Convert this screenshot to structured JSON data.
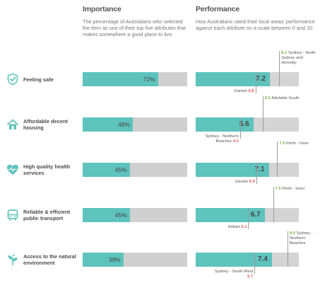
{
  "importance": {
    "title": "Importance",
    "description": "The percentage of Australians who selected the item as one of their top five attributes that makes somewhere a good place to live."
  },
  "performance": {
    "title": "Performance",
    "description": "How Australians rated their local areas' performance against each attribute on a scale between 0 and 10."
  },
  "colors": {
    "fill": "#5ec3bc",
    "track": "#cfcfcf",
    "high": "#7cb342",
    "low": "#e05a5a"
  },
  "chart_data": [
    {
      "type": "bar",
      "title": "Importance",
      "categories": [
        "Feeling safe",
        "Affordable decent housing",
        "High quality health services",
        "Reliable & efficient public transport",
        "Access to the natural environment"
      ],
      "values": [
        72,
        48,
        45,
        45,
        39
      ],
      "labels": [
        "72%",
        "48%",
        "45%",
        "45%",
        "39%"
      ],
      "ylim": [
        0,
        100
      ]
    },
    {
      "type": "bar",
      "title": "Performance",
      "categories": [
        "Feeling safe",
        "Affordable decent housing",
        "High quality health services",
        "Reliable & efficient public transport",
        "Access to the natural environment"
      ],
      "values": [
        7.2,
        5.6,
        7.1,
        6.7,
        7.4
      ],
      "labels": [
        "7.2",
        "5.6",
        "7.1",
        "6.7",
        "7.4"
      ],
      "ylim": [
        0,
        10
      ],
      "high": [
        {
          "value": 8.1,
          "label": "8.1",
          "place": "Sydney - North Sydney and Hornsby"
        },
        {
          "value": 6.5,
          "label": "6.5",
          "place": "Adelaide South"
        },
        {
          "value": 7.9,
          "label": "7.9",
          "place": "Perth - Inner"
        },
        {
          "value": 7.5,
          "label": "7.5",
          "place": "Perth - Inner"
        },
        {
          "value": 8.9,
          "label": "8.9",
          "place": "Sydney - Northern Beaches"
        }
      ],
      "low": [
        {
          "value": 5.8,
          "label": "5.8",
          "place": "Darwin"
        },
        {
          "value": 4.3,
          "label": "4.3",
          "place": "Sydney - Northern Beaches"
        },
        {
          "value": 5.9,
          "label": "5.9",
          "place": "Darwin"
        },
        {
          "value": 5.1,
          "label": "5.1",
          "place": "Hobart"
        },
        {
          "value": 5.7,
          "label": "5.7",
          "place": "Sydney - South West"
        }
      ]
    }
  ],
  "rows": [
    {
      "label": "Feeling safe",
      "icon": "shield-check-icon"
    },
    {
      "label": "Affordable decent housing",
      "icon": "house-icon"
    },
    {
      "label": "High quality health services",
      "icon": "heart-pulse-icon"
    },
    {
      "label": "Reliable & efficient public transport",
      "icon": "bus-icon"
    },
    {
      "label": "Access to the natural environment",
      "icon": "plant-icon"
    }
  ]
}
